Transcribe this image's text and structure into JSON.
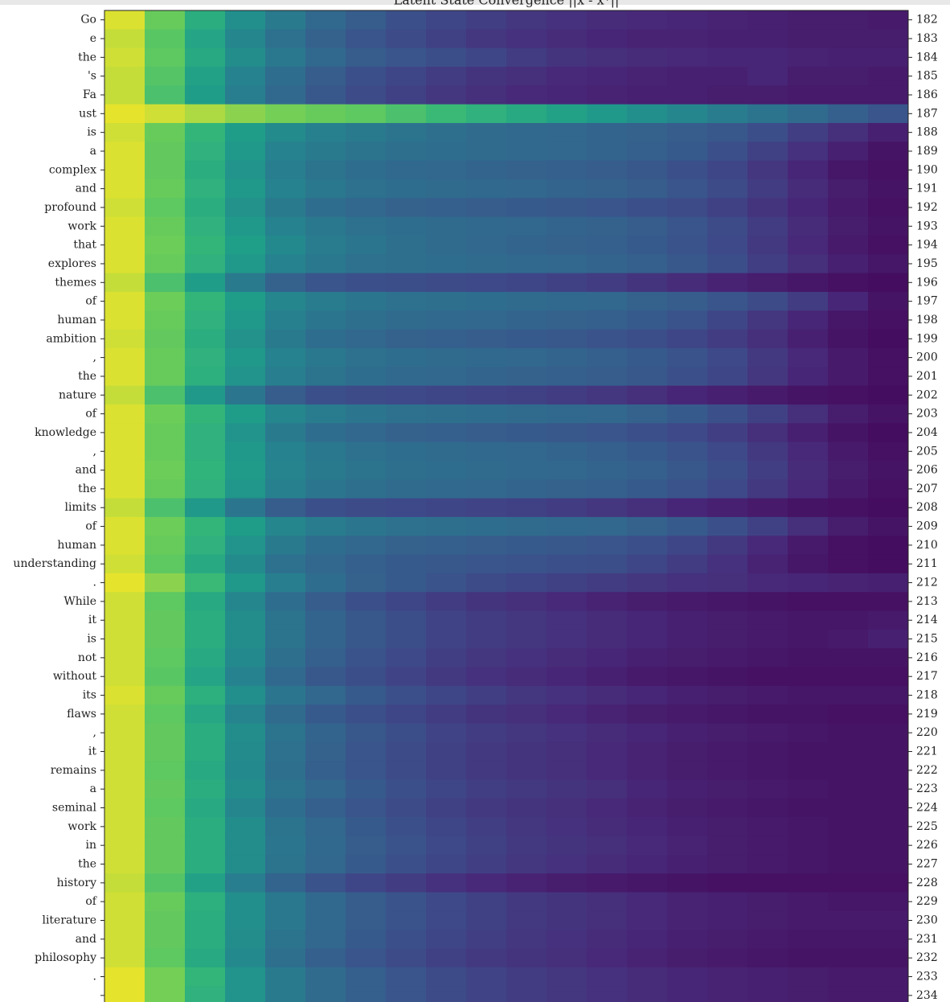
{
  "chart_data": {
    "type": "heatmap",
    "title": "Latent State Convergence ||x - x*||",
    "categories": [
      "Go",
      "e",
      "the",
      "'s",
      "Fa",
      "ust",
      "is",
      "a",
      "complex",
      "and",
      "profound",
      "work",
      "that",
      "explores",
      "themes",
      "of",
      "human",
      "ambition",
      ",",
      "the",
      "nature",
      "of",
      "knowledge",
      ",",
      "and",
      "the",
      "limits",
      "of",
      "human",
      "understanding",
      ".",
      "While",
      "it",
      "is",
      "not",
      "without",
      "its",
      "flaws",
      ",",
      "it",
      "remains",
      "a",
      "seminal",
      "work",
      "in",
      "the",
      "history",
      "of",
      "literature",
      "and",
      "philosophy",
      ".",
      null
    ],
    "y2lim": [
      181.5,
      234.5
    ],
    "y2ticks": [
      182,
      183,
      184,
      185,
      186,
      187,
      188,
      189,
      190,
      191,
      192,
      193,
      194,
      195,
      196,
      197,
      198,
      199,
      200,
      201,
      202,
      203,
      204,
      205,
      206,
      207,
      208,
      209,
      210,
      211,
      212,
      213,
      214,
      215,
      216,
      217,
      218,
      219,
      220,
      221,
      222,
      223,
      224,
      225,
      226,
      227,
      228,
      229,
      230,
      231,
      232,
      233,
      234
    ],
    "colormap": "viridis",
    "zlim": [
      0,
      1
    ],
    "z": [
      [
        0.97,
        0.86,
        0.7,
        0.56,
        0.46,
        0.38,
        0.33,
        0.28,
        0.24,
        0.21,
        0.18,
        0.16,
        0.14,
        0.13,
        0.12,
        0.11,
        0.1,
        0.09,
        0.09,
        0.08
      ],
      [
        0.95,
        0.83,
        0.66,
        0.52,
        0.42,
        0.35,
        0.3,
        0.26,
        0.22,
        0.18,
        0.16,
        0.14,
        0.12,
        0.11,
        0.11,
        0.1,
        0.1,
        0.09,
        0.09,
        0.09
      ],
      [
        0.96,
        0.84,
        0.68,
        0.55,
        0.45,
        0.38,
        0.33,
        0.3,
        0.27,
        0.24,
        0.2,
        0.17,
        0.15,
        0.14,
        0.13,
        0.12,
        0.12,
        0.11,
        0.1,
        0.1
      ],
      [
        0.95,
        0.82,
        0.64,
        0.5,
        0.4,
        0.33,
        0.28,
        0.24,
        0.2,
        0.17,
        0.15,
        0.13,
        0.12,
        0.11,
        0.1,
        0.1,
        0.12,
        0.09,
        0.09,
        0.08
      ],
      [
        0.95,
        0.8,
        0.62,
        0.48,
        0.38,
        0.31,
        0.26,
        0.22,
        0.18,
        0.15,
        0.13,
        0.12,
        0.11,
        0.1,
        0.1,
        0.09,
        0.09,
        0.08,
        0.08,
        0.08
      ],
      [
        0.98,
        0.96,
        0.93,
        0.9,
        0.88,
        0.86,
        0.84,
        0.8,
        0.76,
        0.72,
        0.68,
        0.64,
        0.6,
        0.56,
        0.52,
        0.47,
        0.43,
        0.39,
        0.34,
        0.3
      ],
      [
        0.96,
        0.86,
        0.74,
        0.62,
        0.54,
        0.49,
        0.46,
        0.43,
        0.41,
        0.39,
        0.38,
        0.37,
        0.36,
        0.35,
        0.33,
        0.31,
        0.27,
        0.21,
        0.15,
        0.1
      ],
      [
        0.97,
        0.85,
        0.72,
        0.6,
        0.5,
        0.46,
        0.43,
        0.41,
        0.4,
        0.39,
        0.38,
        0.37,
        0.36,
        0.34,
        0.32,
        0.28,
        0.22,
        0.16,
        0.1,
        0.06
      ],
      [
        0.97,
        0.85,
        0.7,
        0.58,
        0.48,
        0.43,
        0.4,
        0.38,
        0.37,
        0.36,
        0.35,
        0.34,
        0.33,
        0.31,
        0.28,
        0.24,
        0.18,
        0.12,
        0.07,
        0.05
      ],
      [
        0.97,
        0.86,
        0.72,
        0.6,
        0.5,
        0.45,
        0.42,
        0.4,
        0.39,
        0.38,
        0.37,
        0.36,
        0.35,
        0.33,
        0.3,
        0.26,
        0.2,
        0.14,
        0.09,
        0.06
      ],
      [
        0.96,
        0.84,
        0.7,
        0.57,
        0.46,
        0.4,
        0.37,
        0.35,
        0.34,
        0.33,
        0.32,
        0.31,
        0.3,
        0.28,
        0.26,
        0.22,
        0.17,
        0.12,
        0.08,
        0.05
      ],
      [
        0.97,
        0.86,
        0.72,
        0.6,
        0.5,
        0.45,
        0.42,
        0.4,
        0.39,
        0.38,
        0.37,
        0.36,
        0.35,
        0.33,
        0.3,
        0.26,
        0.2,
        0.14,
        0.09,
        0.06
      ],
      [
        0.97,
        0.87,
        0.74,
        0.63,
        0.53,
        0.47,
        0.44,
        0.41,
        0.39,
        0.37,
        0.36,
        0.35,
        0.34,
        0.32,
        0.29,
        0.25,
        0.19,
        0.13,
        0.08,
        0.05
      ],
      [
        0.97,
        0.86,
        0.72,
        0.6,
        0.5,
        0.45,
        0.42,
        0.41,
        0.4,
        0.39,
        0.38,
        0.37,
        0.36,
        0.34,
        0.31,
        0.27,
        0.21,
        0.15,
        0.1,
        0.07
      ],
      [
        0.95,
        0.8,
        0.62,
        0.46,
        0.35,
        0.3,
        0.28,
        0.27,
        0.26,
        0.25,
        0.24,
        0.22,
        0.2,
        0.17,
        0.14,
        0.11,
        0.09,
        0.07,
        0.05,
        0.04
      ],
      [
        0.97,
        0.87,
        0.74,
        0.62,
        0.52,
        0.47,
        0.44,
        0.42,
        0.41,
        0.4,
        0.39,
        0.38,
        0.37,
        0.35,
        0.33,
        0.3,
        0.26,
        0.2,
        0.12,
        0.06
      ],
      [
        0.97,
        0.86,
        0.72,
        0.6,
        0.49,
        0.44,
        0.41,
        0.39,
        0.38,
        0.37,
        0.36,
        0.35,
        0.34,
        0.32,
        0.29,
        0.24,
        0.18,
        0.12,
        0.07,
        0.05
      ],
      [
        0.96,
        0.85,
        0.7,
        0.57,
        0.46,
        0.4,
        0.37,
        0.35,
        0.34,
        0.33,
        0.32,
        0.31,
        0.29,
        0.27,
        0.24,
        0.2,
        0.15,
        0.1,
        0.06,
        0.04
      ],
      [
        0.97,
        0.86,
        0.72,
        0.6,
        0.5,
        0.45,
        0.42,
        0.4,
        0.39,
        0.38,
        0.37,
        0.36,
        0.34,
        0.32,
        0.29,
        0.25,
        0.19,
        0.13,
        0.08,
        0.05
      ],
      [
        0.97,
        0.86,
        0.71,
        0.58,
        0.48,
        0.43,
        0.4,
        0.38,
        0.37,
        0.36,
        0.35,
        0.34,
        0.33,
        0.31,
        0.28,
        0.24,
        0.18,
        0.12,
        0.08,
        0.05
      ],
      [
        0.95,
        0.8,
        0.6,
        0.44,
        0.33,
        0.28,
        0.26,
        0.25,
        0.24,
        0.23,
        0.22,
        0.2,
        0.18,
        0.15,
        0.12,
        0.1,
        0.08,
        0.06,
        0.05,
        0.04
      ],
      [
        0.97,
        0.87,
        0.74,
        0.62,
        0.52,
        0.47,
        0.44,
        0.42,
        0.41,
        0.4,
        0.39,
        0.38,
        0.37,
        0.35,
        0.32,
        0.28,
        0.22,
        0.15,
        0.09,
        0.06
      ],
      [
        0.97,
        0.86,
        0.72,
        0.58,
        0.46,
        0.4,
        0.37,
        0.35,
        0.34,
        0.33,
        0.32,
        0.31,
        0.3,
        0.28,
        0.25,
        0.21,
        0.15,
        0.1,
        0.06,
        0.04
      ],
      [
        0.97,
        0.86,
        0.72,
        0.6,
        0.5,
        0.45,
        0.42,
        0.4,
        0.39,
        0.38,
        0.37,
        0.36,
        0.34,
        0.32,
        0.29,
        0.25,
        0.19,
        0.13,
        0.08,
        0.05
      ],
      [
        0.97,
        0.87,
        0.73,
        0.61,
        0.51,
        0.46,
        0.43,
        0.41,
        0.4,
        0.39,
        0.38,
        0.37,
        0.36,
        0.34,
        0.31,
        0.27,
        0.21,
        0.14,
        0.09,
        0.06
      ],
      [
        0.97,
        0.86,
        0.72,
        0.59,
        0.49,
        0.44,
        0.41,
        0.39,
        0.38,
        0.37,
        0.36,
        0.35,
        0.34,
        0.32,
        0.29,
        0.25,
        0.19,
        0.13,
        0.08,
        0.05
      ],
      [
        0.95,
        0.8,
        0.6,
        0.44,
        0.33,
        0.28,
        0.26,
        0.25,
        0.24,
        0.23,
        0.22,
        0.2,
        0.18,
        0.15,
        0.12,
        0.1,
        0.08,
        0.06,
        0.05,
        0.04
      ],
      [
        0.97,
        0.87,
        0.74,
        0.62,
        0.52,
        0.47,
        0.44,
        0.42,
        0.41,
        0.4,
        0.39,
        0.38,
        0.37,
        0.35,
        0.32,
        0.28,
        0.22,
        0.15,
        0.09,
        0.06
      ],
      [
        0.97,
        0.86,
        0.72,
        0.58,
        0.46,
        0.4,
        0.37,
        0.35,
        0.34,
        0.33,
        0.32,
        0.31,
        0.3,
        0.28,
        0.24,
        0.19,
        0.13,
        0.08,
        0.05,
        0.04
      ],
      [
        0.96,
        0.84,
        0.68,
        0.54,
        0.42,
        0.37,
        0.34,
        0.32,
        0.31,
        0.3,
        0.29,
        0.28,
        0.27,
        0.24,
        0.2,
        0.16,
        0.11,
        0.07,
        0.05,
        0.04
      ],
      [
        0.98,
        0.9,
        0.76,
        0.6,
        0.48,
        0.4,
        0.35,
        0.32,
        0.29,
        0.26,
        0.24,
        0.22,
        0.2,
        0.18,
        0.16,
        0.15,
        0.13,
        0.12,
        0.11,
        0.1
      ],
      [
        0.96,
        0.84,
        0.68,
        0.52,
        0.4,
        0.33,
        0.28,
        0.24,
        0.2,
        0.17,
        0.15,
        0.13,
        0.11,
        0.09,
        0.08,
        0.07,
        0.06,
        0.05,
        0.05,
        0.05
      ],
      [
        0.96,
        0.85,
        0.7,
        0.55,
        0.43,
        0.36,
        0.31,
        0.27,
        0.23,
        0.2,
        0.18,
        0.16,
        0.14,
        0.12,
        0.1,
        0.09,
        0.08,
        0.07,
        0.07,
        0.08
      ],
      [
        0.96,
        0.85,
        0.7,
        0.55,
        0.43,
        0.36,
        0.31,
        0.27,
        0.23,
        0.2,
        0.18,
        0.16,
        0.14,
        0.12,
        0.1,
        0.09,
        0.08,
        0.07,
        0.08,
        0.1
      ],
      [
        0.96,
        0.84,
        0.68,
        0.53,
        0.41,
        0.34,
        0.29,
        0.25,
        0.21,
        0.18,
        0.16,
        0.14,
        0.12,
        0.1,
        0.09,
        0.08,
        0.07,
        0.06,
        0.06,
        0.06
      ],
      [
        0.96,
        0.83,
        0.66,
        0.5,
        0.38,
        0.31,
        0.27,
        0.23,
        0.19,
        0.16,
        0.14,
        0.12,
        0.1,
        0.08,
        0.07,
        0.06,
        0.05,
        0.05,
        0.05,
        0.05
      ],
      [
        0.97,
        0.86,
        0.71,
        0.56,
        0.44,
        0.37,
        0.32,
        0.28,
        0.24,
        0.21,
        0.18,
        0.16,
        0.14,
        0.12,
        0.1,
        0.09,
        0.08,
        0.07,
        0.07,
        0.07
      ],
      [
        0.96,
        0.84,
        0.67,
        0.51,
        0.39,
        0.32,
        0.28,
        0.24,
        0.2,
        0.17,
        0.15,
        0.13,
        0.11,
        0.09,
        0.08,
        0.07,
        0.06,
        0.06,
        0.05,
        0.05
      ],
      [
        0.96,
        0.85,
        0.7,
        0.55,
        0.43,
        0.36,
        0.31,
        0.27,
        0.23,
        0.2,
        0.18,
        0.16,
        0.14,
        0.12,
        0.1,
        0.09,
        0.08,
        0.07,
        0.06,
        0.06
      ],
      [
        0.96,
        0.85,
        0.7,
        0.54,
        0.42,
        0.35,
        0.3,
        0.26,
        0.22,
        0.19,
        0.17,
        0.15,
        0.13,
        0.11,
        0.09,
        0.08,
        0.07,
        0.06,
        0.06,
        0.06
      ],
      [
        0.96,
        0.84,
        0.68,
        0.53,
        0.41,
        0.34,
        0.3,
        0.26,
        0.22,
        0.19,
        0.17,
        0.15,
        0.13,
        0.11,
        0.09,
        0.08,
        0.07,
        0.06,
        0.06,
        0.06
      ],
      [
        0.96,
        0.85,
        0.7,
        0.55,
        0.43,
        0.37,
        0.32,
        0.28,
        0.24,
        0.21,
        0.19,
        0.17,
        0.15,
        0.12,
        0.1,
        0.09,
        0.08,
        0.07,
        0.06,
        0.06
      ],
      [
        0.96,
        0.84,
        0.68,
        0.52,
        0.4,
        0.34,
        0.3,
        0.26,
        0.22,
        0.19,
        0.17,
        0.15,
        0.13,
        0.11,
        0.09,
        0.08,
        0.07,
        0.06,
        0.06,
        0.06
      ],
      [
        0.96,
        0.85,
        0.7,
        0.55,
        0.43,
        0.37,
        0.32,
        0.28,
        0.24,
        0.21,
        0.18,
        0.16,
        0.14,
        0.12,
        0.1,
        0.09,
        0.08,
        0.07,
        0.06,
        0.06
      ],
      [
        0.96,
        0.85,
        0.7,
        0.55,
        0.44,
        0.38,
        0.33,
        0.29,
        0.25,
        0.22,
        0.19,
        0.17,
        0.15,
        0.13,
        0.11,
        0.09,
        0.08,
        0.07,
        0.06,
        0.06
      ],
      [
        0.96,
        0.85,
        0.7,
        0.55,
        0.43,
        0.37,
        0.32,
        0.28,
        0.24,
        0.21,
        0.18,
        0.16,
        0.14,
        0.12,
        0.1,
        0.09,
        0.08,
        0.07,
        0.06,
        0.06
      ],
      [
        0.95,
        0.82,
        0.64,
        0.48,
        0.36,
        0.29,
        0.24,
        0.2,
        0.16,
        0.13,
        0.11,
        0.09,
        0.08,
        0.07,
        0.06,
        0.05,
        0.05,
        0.05,
        0.05,
        0.05
      ],
      [
        0.96,
        0.86,
        0.71,
        0.56,
        0.45,
        0.38,
        0.33,
        0.29,
        0.25,
        0.22,
        0.19,
        0.17,
        0.15,
        0.13,
        0.11,
        0.1,
        0.09,
        0.08,
        0.07,
        0.07
      ],
      [
        0.96,
        0.85,
        0.7,
        0.56,
        0.45,
        0.38,
        0.33,
        0.29,
        0.25,
        0.22,
        0.19,
        0.17,
        0.15,
        0.13,
        0.11,
        0.1,
        0.09,
        0.08,
        0.08,
        0.08
      ],
      [
        0.96,
        0.85,
        0.7,
        0.55,
        0.43,
        0.37,
        0.32,
        0.28,
        0.24,
        0.21,
        0.18,
        0.16,
        0.14,
        0.12,
        0.1,
        0.09,
        0.08,
        0.07,
        0.07,
        0.07
      ],
      [
        0.96,
        0.84,
        0.68,
        0.53,
        0.41,
        0.34,
        0.3,
        0.26,
        0.22,
        0.19,
        0.17,
        0.15,
        0.13,
        0.11,
        0.09,
        0.08,
        0.07,
        0.06,
        0.06,
        0.06
      ],
      [
        0.98,
        0.88,
        0.74,
        0.58,
        0.46,
        0.39,
        0.34,
        0.3,
        0.26,
        0.23,
        0.2,
        0.18,
        0.16,
        0.14,
        0.12,
        0.11,
        0.1,
        0.09,
        0.08,
        0.08
      ],
      [
        0.98,
        0.88,
        0.72,
        0.58,
        0.46,
        0.39,
        0.34,
        0.3,
        0.26,
        0.23,
        0.2,
        0.18,
        0.16,
        0.14,
        0.12,
        0.11,
        0.1,
        0.09,
        0.08,
        0.08
      ]
    ]
  }
}
